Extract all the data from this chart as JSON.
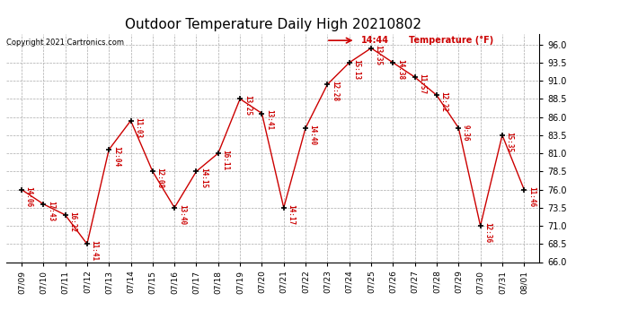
{
  "title": "Outdoor Temperature Daily High 20210802",
  "copyright": "Copyright 2021 Cartronics.com",
  "legend_label": "Temperature (°F)",
  "legend_time": "14:44",
  "dates": [
    "07/09",
    "07/10",
    "07/11",
    "07/12",
    "07/13",
    "07/14",
    "07/15",
    "07/16",
    "07/17",
    "07/18",
    "07/19",
    "07/20",
    "07/21",
    "07/22",
    "07/23",
    "07/24",
    "07/25",
    "07/26",
    "07/27",
    "07/28",
    "07/29",
    "07/30",
    "07/31",
    "08/01"
  ],
  "temps": [
    76.0,
    74.0,
    72.5,
    68.5,
    81.5,
    85.5,
    78.5,
    73.5,
    78.5,
    81.0,
    88.5,
    86.5,
    73.5,
    84.5,
    90.5,
    93.5,
    95.5,
    93.5,
    91.5,
    89.0,
    84.5,
    71.0,
    83.5,
    76.0
  ],
  "time_labels": [
    "14:06",
    "17:43",
    "16:22",
    "11:41",
    "12:04",
    "11:03",
    "12:08",
    "13:40",
    "14:15",
    "16:11",
    "13:25",
    "13:41",
    "14:17",
    "14:40",
    "12:28",
    "15:13",
    "13:35",
    "14:38",
    "11:57",
    "12:22",
    "9:36",
    "12:36",
    "15:35",
    "11:46"
  ],
  "line_color": "#cc0000",
  "marker_color": "#000000",
  "label_color": "#cc0000",
  "background_color": "#ffffff",
  "grid_color": "#aaaaaa",
  "title_fontsize": 11,
  "ylim": [
    66.0,
    97.5
  ],
  "yticks": [
    66.0,
    68.5,
    71.0,
    73.5,
    76.0,
    78.5,
    81.0,
    83.5,
    86.0,
    88.5,
    91.0,
    93.5,
    96.0
  ]
}
